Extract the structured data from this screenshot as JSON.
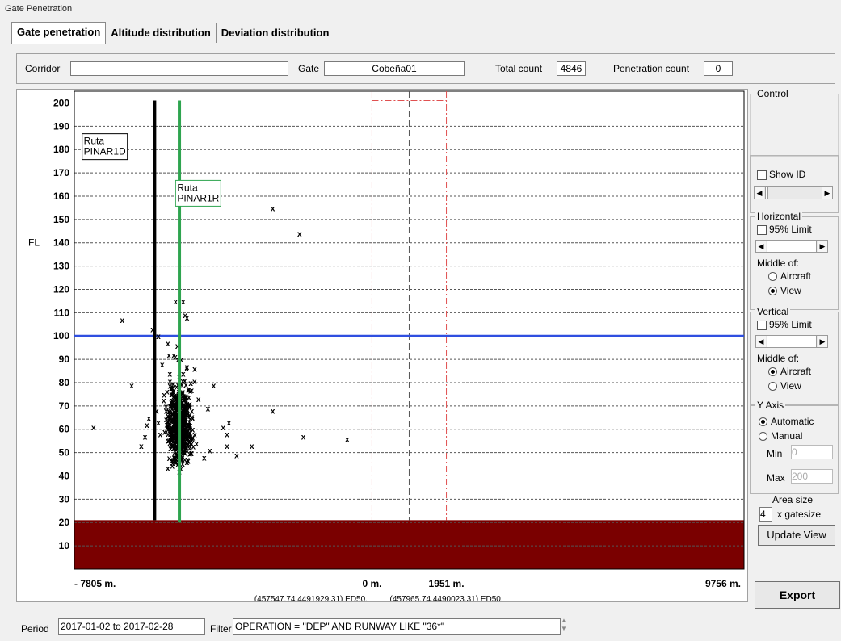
{
  "window_title": "Gate Penetration",
  "tabs": [
    {
      "label": "Gate penetration",
      "active": true
    },
    {
      "label": "Altitude distribution",
      "active": false
    },
    {
      "label": "Deviation distribution",
      "active": false
    }
  ],
  "info": {
    "corridor_label": "Corridor",
    "corridor_value": "",
    "gate_label": "Gate",
    "gate_value": "Cobeña01",
    "total_label": "Total count",
    "total_value": "4846",
    "penetration_label": "Penetration count",
    "penetration_value": "0"
  },
  "chart_data": {
    "type": "scatter",
    "ylabel": "FL",
    "ylim": [
      0,
      205
    ],
    "y_ticks": [
      10,
      20,
      30,
      40,
      50,
      60,
      70,
      80,
      90,
      100,
      110,
      120,
      130,
      140,
      150,
      160,
      170,
      180,
      190,
      200
    ],
    "x_ticks": [
      "- 7805 m.",
      "0 m.",
      "1951 m.",
      "9756 m."
    ],
    "x_tick_values": [
      -7805,
      0,
      1951,
      9756
    ],
    "xlim": [
      -7805,
      9756
    ],
    "coord_labels": [
      {
        "at": -1600,
        "text": "(457547,74,4491929,31) ED50."
      },
      {
        "at": 1951,
        "text": "(457965,74,4490023,31) ED50."
      }
    ],
    "ground_level_fl": 21,
    "horizontal_line_fl": 100,
    "routes": [
      {
        "label": "Ruta\nPINAR1D",
        "line1": "Ruta",
        "line2": "PINAR1D",
        "x": -5700,
        "color": "#000000",
        "fl_top": 201,
        "fl_bottom": 21,
        "label_x": -7600,
        "label_fl": 184
      },
      {
        "label": "Ruta\nPINAR1R",
        "line1": "Ruta",
        "line2": "PINAR1R",
        "x": -5050,
        "color": "#2ea44f",
        "fl_top": 201,
        "fl_bottom": 20,
        "label_x": -5150,
        "label_fl": 164
      }
    ],
    "gate_lines": [
      {
        "x": 0,
        "color": "#e05050",
        "style": "dash-dot"
      },
      {
        "x": 1951,
        "color": "#e05050",
        "style": "dash-dot"
      },
      {
        "x": 975,
        "color": "#555555",
        "style": "dash"
      }
    ],
    "gate_top_fl": 201,
    "points": [
      [
        -7300,
        61
      ],
      [
        -6550,
        107
      ],
      [
        -6300,
        79
      ],
      [
        -6050,
        53
      ],
      [
        -5950,
        57
      ],
      [
        -5900,
        62
      ],
      [
        -5850,
        65
      ],
      [
        -5750,
        103
      ],
      [
        -5600,
        100
      ],
      [
        -5350,
        97
      ],
      [
        -5150,
        115
      ],
      [
        -4950,
        115
      ],
      [
        -4900,
        109
      ],
      [
        -4850,
        108
      ],
      [
        -4650,
        86
      ],
      [
        -4550,
        73
      ],
      [
        -4300,
        69
      ],
      [
        -4150,
        79
      ],
      [
        -3900,
        61
      ],
      [
        -3800,
        58
      ],
      [
        -3750,
        63
      ],
      [
        -3800,
        53
      ],
      [
        -3550,
        49
      ],
      [
        -3150,
        53
      ],
      [
        -4250,
        51
      ],
      [
        -4400,
        48
      ],
      [
        -2600,
        155
      ],
      [
        -1900,
        144
      ],
      [
        -2600,
        68
      ],
      [
        -1800,
        57
      ],
      [
        -650,
        56
      ],
      [
        -5500,
        88
      ],
      [
        -5450,
        75
      ],
      [
        -5400,
        70
      ],
      [
        -5350,
        66
      ],
      [
        -5300,
        60
      ],
      [
        -5250,
        56
      ],
      [
        -5200,
        52
      ],
      [
        -5150,
        48
      ],
      [
        -5100,
        45
      ],
      [
        -5050,
        42
      ],
      [
        -5000,
        47
      ],
      [
        -4950,
        55
      ],
      [
        -4900,
        62
      ],
      [
        -4850,
        68
      ],
      [
        -4800,
        74
      ],
      [
        -4750,
        80
      ],
      [
        -5550,
        58
      ],
      [
        -5600,
        63
      ],
      [
        -5650,
        68
      ],
      [
        -5700,
        72
      ],
      [
        -5200,
        92
      ],
      [
        -5100,
        96
      ],
      [
        -5000,
        90
      ],
      [
        -4950,
        84
      ],
      [
        -4700,
        65
      ],
      [
        -4650,
        58
      ],
      [
        -4600,
        54
      ],
      [
        -5250,
        78
      ],
      [
        -5300,
        84
      ],
      [
        -5350,
        60
      ],
      [
        -5150,
        70
      ],
      [
        -5050,
        76
      ],
      [
        -4900,
        50
      ],
      [
        -4800,
        57
      ],
      [
        -4700,
        60
      ]
    ],
    "cloud": {
      "x_center": -5050,
      "x_spread": 450,
      "fl_center": 62,
      "fl_spread": 14
    }
  },
  "control": {
    "title": "Control",
    "show_id": "Show ID",
    "horizontal": {
      "title": "Horizontal",
      "limit": "95% Limit",
      "middle_of": "Middle of:",
      "opt1": "Aircraft",
      "opt2": "View",
      "selected": "View"
    },
    "vertical": {
      "title": "Vertical",
      "limit": "95% Limit",
      "middle_of": "Middle of:",
      "opt1": "Aircraft",
      "opt2": "View",
      "selected": "Aircraft"
    },
    "yaxis": {
      "title": "Y Axis",
      "auto": "Automatic",
      "manual": "Manual",
      "min_label": "Min",
      "min_value": "0",
      "max_label": "Max",
      "max_value": "200"
    },
    "area_size_label": "Area size",
    "area_size_value": "4",
    "gatesize_label": "x gatesize",
    "update_view": "Update View",
    "export": "Export"
  },
  "footer": {
    "period_label": "Period",
    "period_value": "2017-01-02 to 2017-02-28",
    "filter_label": "Filter",
    "filter_value": "OPERATION = \"DEP\" AND RUNWAY LIKE \"36*\""
  }
}
